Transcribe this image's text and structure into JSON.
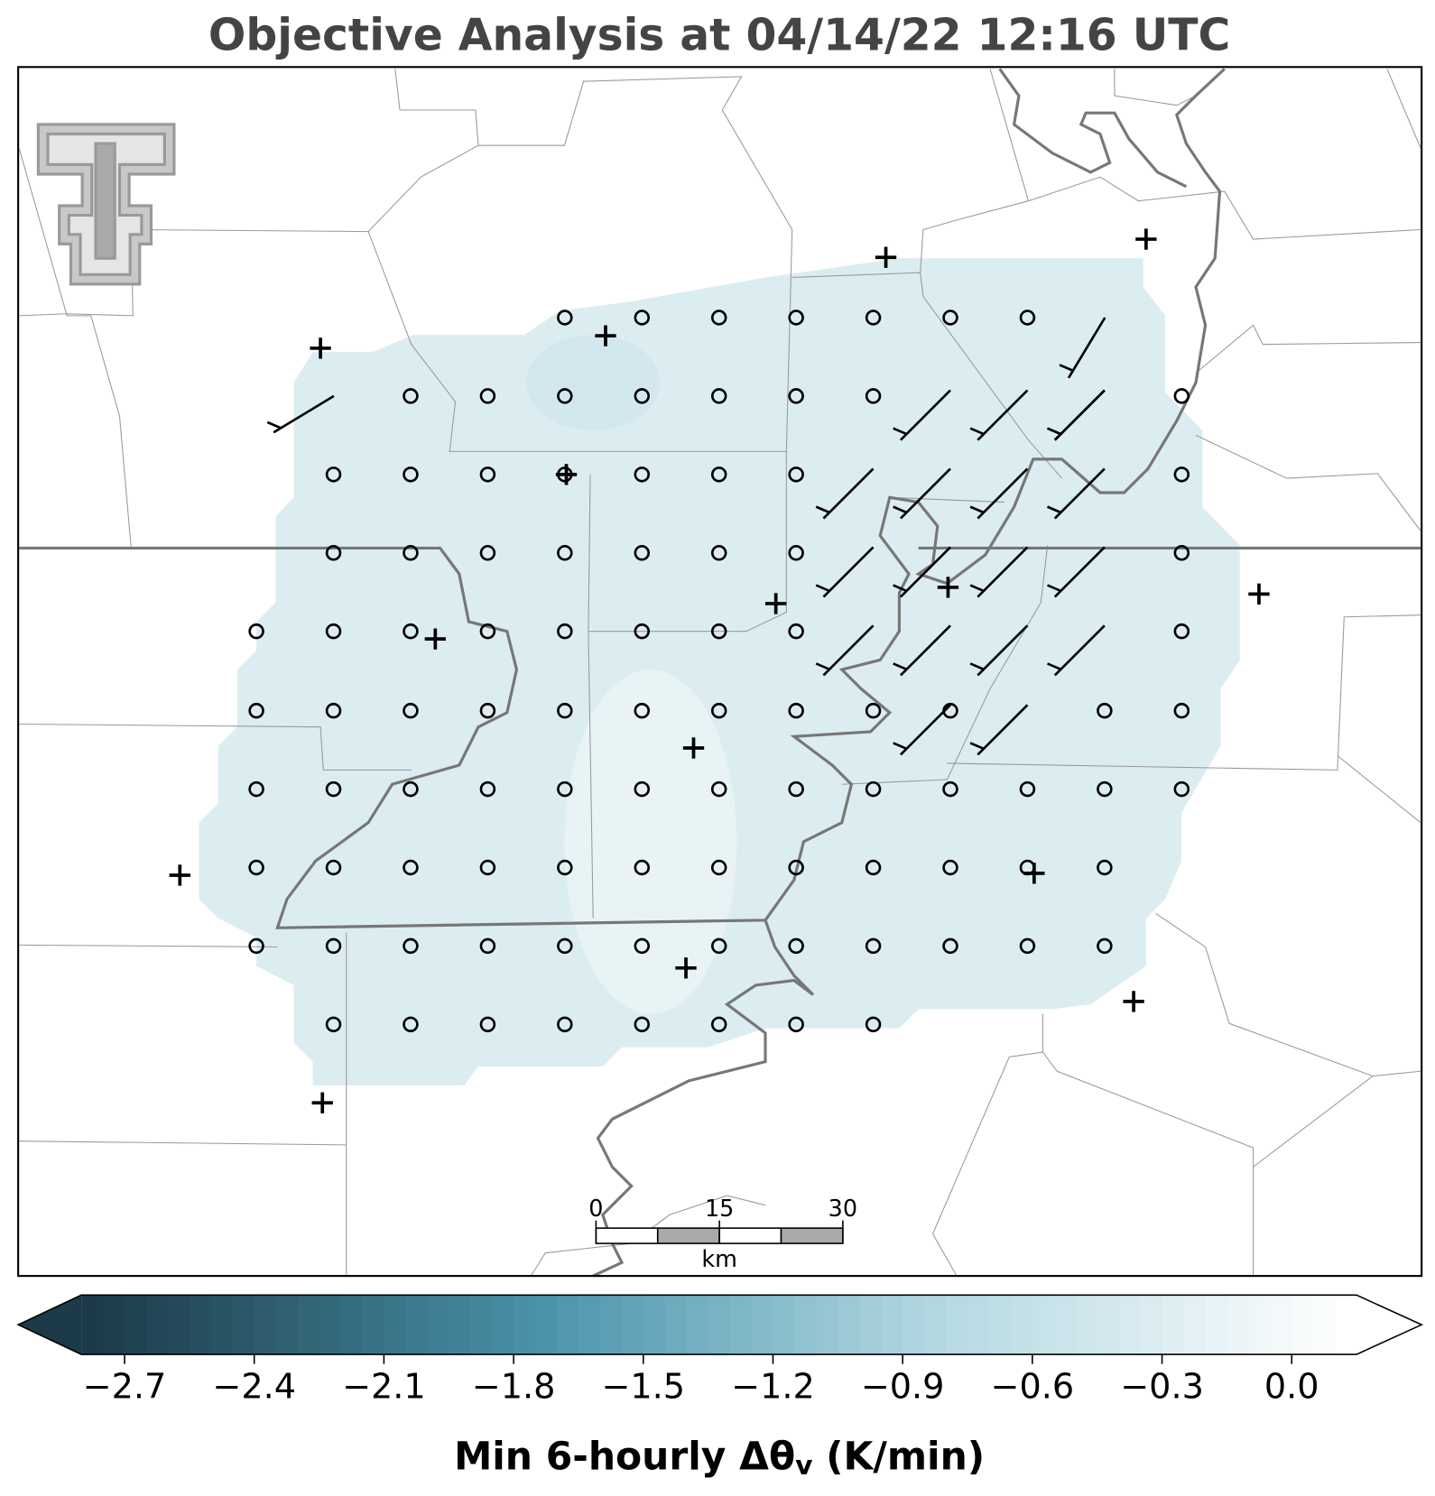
{
  "title": "Objective Analysis at 04/14/22 12:16 UTC",
  "scale_bar": {
    "ticks": [
      0,
      15,
      30
    ],
    "unit": "km",
    "range": [
      0,
      30
    ]
  },
  "colorbar": {
    "range": [
      -2.8,
      0.15
    ],
    "ticks": [
      {
        "value": -2.7,
        "label": "−2.7"
      },
      {
        "value": -2.4,
        "label": "−2.4"
      },
      {
        "value": -2.1,
        "label": "−2.1"
      },
      {
        "value": -1.8,
        "label": "−1.8"
      },
      {
        "value": -1.5,
        "label": "−1.5"
      },
      {
        "value": -1.2,
        "label": "−1.2"
      },
      {
        "value": -0.9,
        "label": "−0.9"
      },
      {
        "value": -0.6,
        "label": "−0.6"
      },
      {
        "value": -0.3,
        "label": "−0.3"
      },
      {
        "value": 0,
        "label": "0.0"
      }
    ],
    "label": {
      "main": "Min 6-hourly Δθ",
      "sub": "v",
      "tail": " (K/min)"
    }
  }
}
